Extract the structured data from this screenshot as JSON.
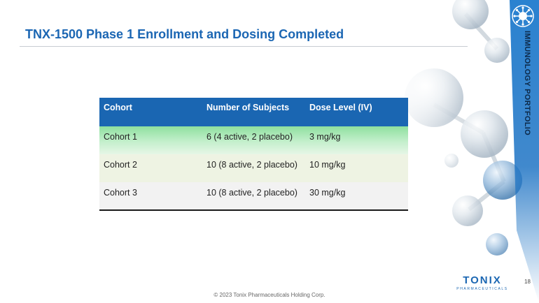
{
  "slide": {
    "title": "TNX-1500 Phase 1 Enrollment and Dosing Completed",
    "side_label": "IMMUNOLOGY PORTFOLIO",
    "page_number": "18",
    "footer": "© 2023 Tonix Pharmaceuticals Holding Corp."
  },
  "logo": {
    "word": "TONIX",
    "subtitle": "PHARMACEUTICALS"
  },
  "table": {
    "headers": [
      "Cohort",
      "Number of Subjects",
      "Dose Level (IV)"
    ],
    "rows": [
      [
        "Cohort 1",
        "6 (4 active, 2 placebo)",
        "3 mg/kg"
      ],
      [
        "Cohort 2",
        "10 (8 active, 2 placebo)",
        "10 mg/kg"
      ],
      [
        "Cohort 3",
        "10 (8 active, 2 placebo)",
        "30 mg/kg"
      ]
    ]
  },
  "colors": {
    "accent": "#1a66b2",
    "side_band": "#1f74c4",
    "row1": "#c4efcc",
    "row2": "#eef3e3",
    "row3": "#f2f2f2"
  },
  "icons": {
    "side_emblem": "virus-emblem-icon",
    "background": "molecule-background"
  }
}
